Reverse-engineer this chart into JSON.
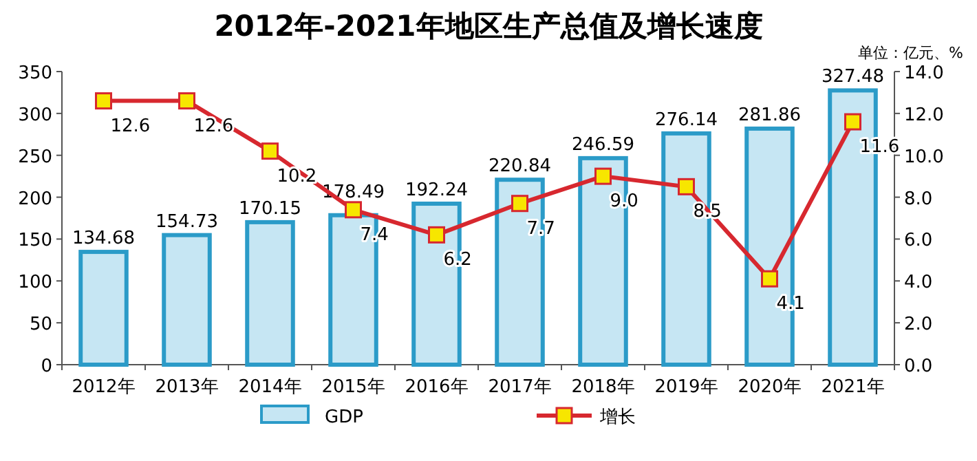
{
  "chart_data": {
    "type": "bar",
    "title": "2012年-2021年地区生产总值及增长速度",
    "annotations": [
      "单位：亿元、%"
    ],
    "categories": [
      "2012年",
      "2013年",
      "2014年",
      "2015年",
      "2016年",
      "2017年",
      "2018年",
      "2019年",
      "2020年",
      "2021年"
    ],
    "series": [
      {
        "name": "GDP",
        "color": "#c6e6f3",
        "values": [
          134.68,
          154.73,
          170.15,
          178.49,
          192.24,
          220.84,
          246.59,
          276.14,
          281.86,
          327.48
        ],
        "value_labels": [
          "134.68",
          "154.73",
          "170.15",
          "178.49",
          "192.24",
          "220.84",
          "246.59",
          "276.14",
          "281.86",
          "327.48"
        ]
      },
      {
        "name": "增长",
        "type": "line",
        "axis": "y2",
        "color": "#d7282f",
        "marker": "square",
        "line_style": "solid",
        "values": [
          12.6,
          12.6,
          10.2,
          7.4,
          6.2,
          7.7,
          9.0,
          8.5,
          4.1,
          11.6
        ],
        "value_labels": [
          "12.6",
          "12.6",
          "10.2",
          "7.4",
          "6.2",
          "7.7",
          "9.0",
          "8.5",
          "4.1",
          "11.6"
        ]
      }
    ],
    "ylim": [
      0,
      350
    ],
    "yticks": [
      0,
      50,
      100,
      150,
      200,
      250,
      300,
      350
    ],
    "y2lim": [
      0,
      14
    ],
    "y2ticks": [
      {
        "value": 0,
        "label": "0.0"
      },
      {
        "value": 2,
        "label": "2.0"
      },
      {
        "value": 4,
        "label": "4.0"
      },
      {
        "value": 6,
        "label": "6.0"
      },
      {
        "value": 8,
        "label": "8.0"
      },
      {
        "value": 10,
        "label": "10.0"
      },
      {
        "value": 12,
        "label": "12.0"
      },
      {
        "value": 14,
        "label": "14.0"
      }
    ],
    "grid": false,
    "legend": "bottom"
  }
}
